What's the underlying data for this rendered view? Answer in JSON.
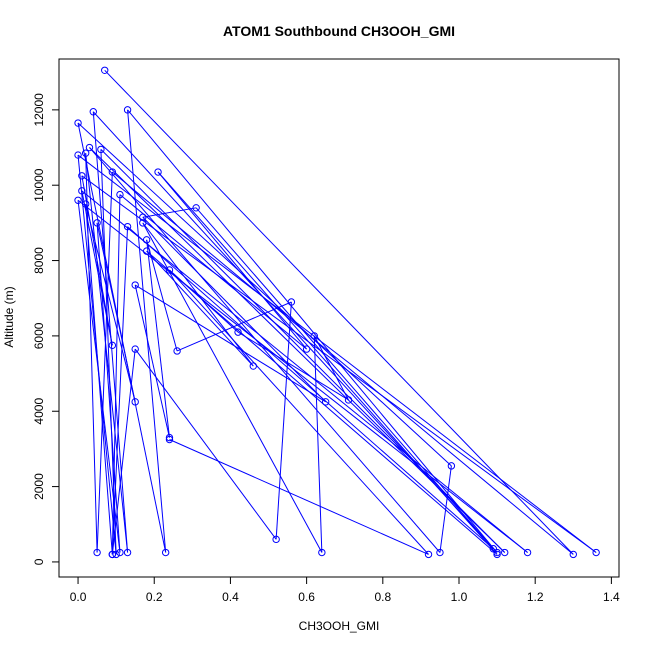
{
  "chart_data": {
    "type": "scatter",
    "title": "ATOM1 Southbound CH3OOH_GMI",
    "xlabel": "CH3OOH_GMI",
    "ylabel": "Altitude (m)",
    "xlim": [
      -0.05,
      1.42
    ],
    "ylim": [
      -400,
      13350
    ],
    "x_ticks": [
      0.0,
      0.2,
      0.4,
      0.6,
      0.8,
      1.0,
      1.2,
      1.4
    ],
    "x_tick_labels": [
      "0.0",
      "0.2",
      "0.4",
      "0.6",
      "0.8",
      "1.0",
      "1.2",
      "1.4"
    ],
    "y_ticks": [
      0,
      2000,
      4000,
      6000,
      8000,
      10000,
      12000
    ],
    "y_tick_labels": [
      "0",
      "2000",
      "4000",
      "6000",
      "8000",
      "10000",
      "12000"
    ],
    "grid": false,
    "legend": "none",
    "series": [
      {
        "color": "#0000ff",
        "marker": "open-circle",
        "line": true,
        "points": [
          [
            0.07,
            13050
          ],
          [
            1.3,
            200
          ],
          [
            0.09,
            10350
          ],
          [
            0.05,
            250
          ],
          [
            0.02,
            10850
          ],
          [
            0.13,
            250
          ],
          [
            0.04,
            11950
          ],
          [
            1.1,
            250
          ],
          [
            0.13,
            12000
          ],
          [
            0.23,
            250
          ],
          [
            0.0,
            11650
          ],
          [
            0.98,
            2550
          ],
          [
            0.95,
            250
          ],
          [
            0.03,
            11000
          ],
          [
            1.12,
            250
          ],
          [
            0.06,
            10950
          ],
          [
            0.1,
            200
          ],
          [
            0.0,
            10800
          ],
          [
            1.36,
            250
          ],
          [
            0.01,
            10250
          ],
          [
            0.09,
            5750
          ],
          [
            0.01,
            9850
          ],
          [
            1.18,
            250
          ],
          [
            0.0,
            9600
          ],
          [
            0.11,
            250
          ],
          [
            0.05,
            9000
          ],
          [
            0.15,
            4250
          ],
          [
            0.02,
            9500
          ],
          [
            0.09,
            200
          ],
          [
            0.13,
            8900
          ],
          [
            1.09,
            350
          ],
          [
            0.31,
            9400
          ],
          [
            0.17,
            9150
          ],
          [
            0.65,
            4250
          ],
          [
            0.15,
            7350
          ],
          [
            0.24,
            3300
          ],
          [
            0.18,
            8550
          ],
          [
            0.26,
            5600
          ],
          [
            0.56,
            6900
          ],
          [
            0.52,
            600
          ],
          [
            0.15,
            5650
          ],
          [
            0.09,
            200
          ],
          [
            0.11,
            9750
          ],
          [
            0.6,
            5650
          ],
          [
            0.21,
            10350
          ],
          [
            1.1,
            200
          ],
          [
            0.18,
            8250
          ],
          [
            0.46,
            5200
          ],
          [
            0.17,
            9000
          ],
          [
            0.64,
            250
          ],
          [
            0.62,
            6000
          ],
          [
            0.71,
            4300
          ],
          [
            0.42,
            6100
          ],
          [
            0.24,
            7750
          ],
          [
            0.92,
            200
          ],
          [
            0.24,
            3250
          ]
        ]
      }
    ]
  }
}
